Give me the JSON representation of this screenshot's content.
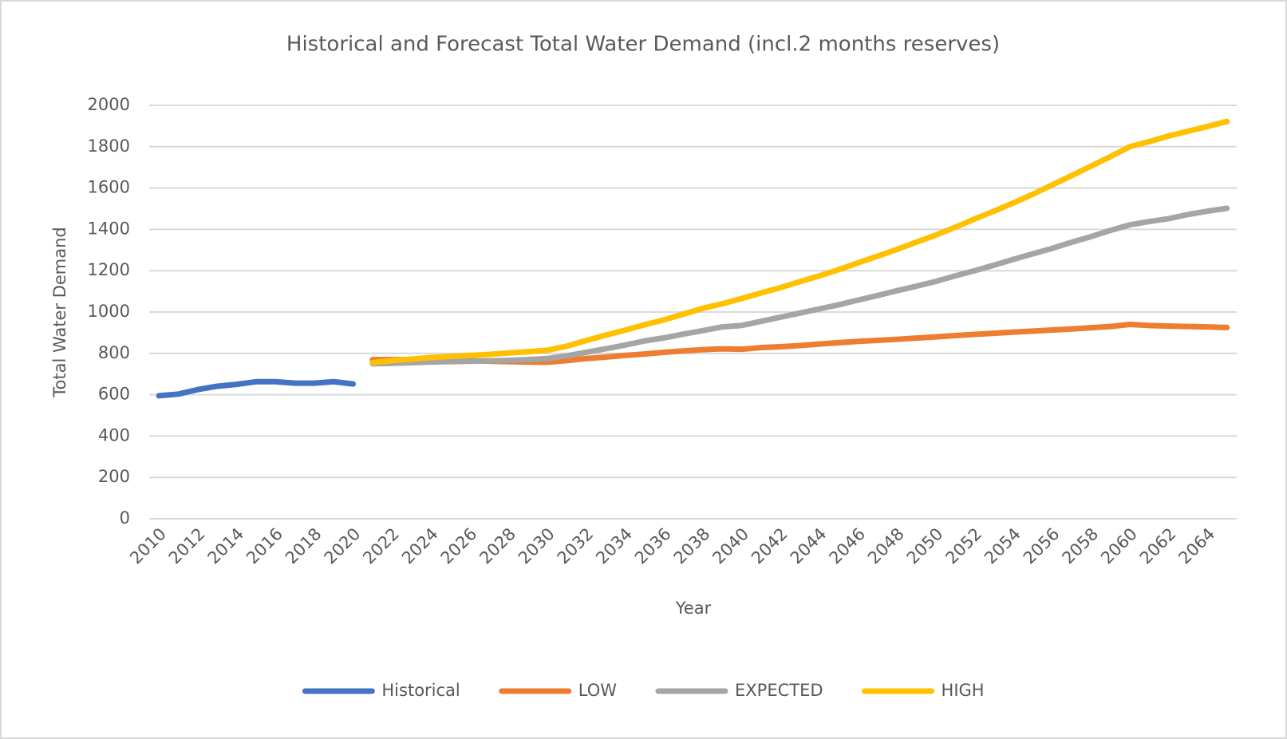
{
  "chart_data": {
    "type": "line",
    "title": "Historical and Forecast Total Water Demand (incl.2 months reserves)",
    "x_label": "Year",
    "y_label": "Total Water Demand",
    "categories": [
      "2010",
      null,
      "2012",
      null,
      "2014",
      null,
      "2016",
      null,
      "2018",
      null,
      "2020",
      null,
      "2022",
      null,
      "2024",
      null,
      "2026",
      null,
      "2028",
      null,
      "2030",
      null,
      "2032",
      null,
      "2034",
      null,
      "2036",
      null,
      "2038",
      null,
      "2040",
      null,
      "2042",
      null,
      "2044",
      null,
      "2046",
      null,
      "2048",
      null,
      "2050",
      null,
      "2052",
      null,
      "2054",
      null,
      "2056",
      null,
      "2058",
      null,
      "2060",
      null,
      "2062",
      null,
      "2064",
      null
    ],
    "series": [
      {
        "name": "Historical",
        "color": "#4472c4",
        "values": [
          595,
          603,
          625,
          641,
          650,
          663,
          663,
          656,
          656,
          663,
          652,
          null,
          null,
          null,
          null,
          null,
          null,
          null,
          null,
          null,
          null,
          null,
          null,
          null,
          null,
          null,
          null,
          null,
          null,
          null,
          null,
          null,
          null,
          null,
          null,
          null,
          null,
          null,
          null,
          null,
          null,
          null,
          null,
          null,
          null,
          null,
          null,
          null,
          null,
          null,
          null,
          null,
          null,
          null,
          null,
          null
        ]
      },
      {
        "name": "LOW",
        "color": "#ed7d31",
        "values": [
          null,
          null,
          null,
          null,
          null,
          null,
          null,
          null,
          null,
          null,
          null,
          770,
          770,
          770,
          768,
          766,
          765,
          762,
          760,
          758,
          757,
          765,
          775,
          782,
          790,
          797,
          805,
          812,
          818,
          822,
          820,
          828,
          832,
          838,
          845,
          852,
          858,
          863,
          868,
          874,
          880,
          886,
          892,
          897,
          903,
          908,
          913,
          918,
          924,
          930,
          940,
          935,
          932,
          930,
          928,
          925
        ]
      },
      {
        "name": "EXPECTED",
        "color": "#a5a5a5",
        "values": [
          null,
          null,
          null,
          null,
          null,
          null,
          null,
          null,
          null,
          null,
          null,
          750,
          752,
          755,
          758,
          760,
          762,
          764,
          766,
          770,
          775,
          788,
          805,
          822,
          840,
          860,
          875,
          893,
          910,
          928,
          935,
          955,
          975,
          995,
          1015,
          1035,
          1058,
          1080,
          1103,
          1125,
          1148,
          1175,
          1200,
          1227,
          1255,
          1282,
          1308,
          1338,
          1365,
          1395,
          1422,
          1438,
          1452,
          1472,
          1488,
          1502
        ]
      },
      {
        "name": "HIGH",
        "color": "#ffc000",
        "values": [
          null,
          null,
          null,
          null,
          null,
          null,
          null,
          null,
          null,
          null,
          null,
          755,
          765,
          772,
          780,
          785,
          790,
          795,
          802,
          808,
          815,
          835,
          862,
          888,
          912,
          938,
          962,
          990,
          1018,
          1040,
          1065,
          1092,
          1118,
          1147,
          1175,
          1205,
          1238,
          1270,
          1303,
          1338,
          1372,
          1410,
          1450,
          1488,
          1528,
          1570,
          1615,
          1660,
          1706,
          1752,
          1800,
          1825,
          1852,
          1875,
          1898,
          1922
        ]
      }
    ],
    "ylim": [
      0,
      2000
    ],
    "yticks": [
      0,
      200,
      400,
      600,
      800,
      1000,
      1200,
      1400,
      1600,
      1800,
      2000
    ],
    "grid": true,
    "legend": "bottom"
  }
}
